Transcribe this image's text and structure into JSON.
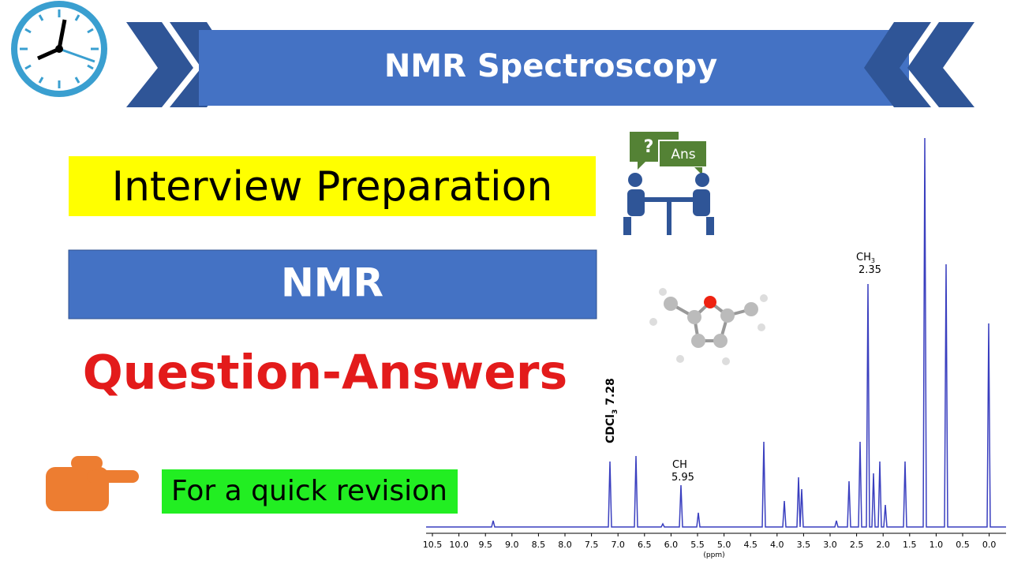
{
  "header": {
    "title": "NMR Spectroscopy"
  },
  "main": {
    "heading": "Interview Preparation",
    "topic": "NMR",
    "subtitle": "Question-Answers",
    "note": "For a quick revision"
  },
  "icon": {
    "question": "?",
    "answer": "Ans"
  },
  "spectrum": {
    "axis_label": "(ppm)",
    "ticks": [
      "10.5",
      "10.0",
      "9.5",
      "9.0",
      "8.5",
      "8.0",
      "7.5",
      "7.0",
      "6.5",
      "6.0",
      "5.5",
      "5.0",
      "4.5",
      "4.0",
      "3.5",
      "3.0",
      "2.5",
      "2.0",
      "1.5",
      "1.0",
      "0.5",
      "0.0"
    ],
    "peaks": [
      {
        "group": "CDCl",
        "sub": "3",
        "shift": "7.28"
      },
      {
        "group": "CH",
        "shift": "5.95"
      },
      {
        "group": "CH",
        "sub": "3",
        "shift": "2.35"
      }
    ]
  }
}
